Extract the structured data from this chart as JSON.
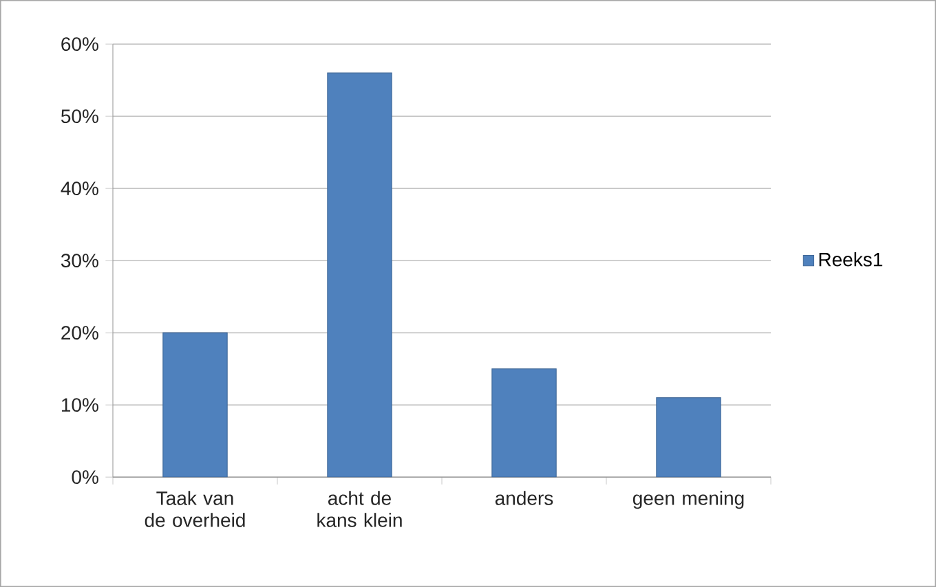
{
  "chart_data": {
    "type": "bar",
    "categories": [
      "Taak van de overheid",
      "acht de kans klein",
      "anders",
      "geen mening"
    ],
    "series": [
      {
        "name": "Reeks1",
        "color": "#4f81bd",
        "values": [
          20,
          56,
          15,
          11
        ]
      }
    ],
    "ylim": [
      0,
      60
    ],
    "yticks": [
      {
        "value": 0,
        "label": "0%"
      },
      {
        "value": 10,
        "label": "10%"
      },
      {
        "value": 20,
        "label": "20%"
      },
      {
        "value": 30,
        "label": "30%"
      },
      {
        "value": 40,
        "label": "40%"
      },
      {
        "value": 50,
        "label": "50%"
      },
      {
        "value": 60,
        "label": "60%"
      }
    ],
    "grid": "y",
    "legend": "right"
  }
}
